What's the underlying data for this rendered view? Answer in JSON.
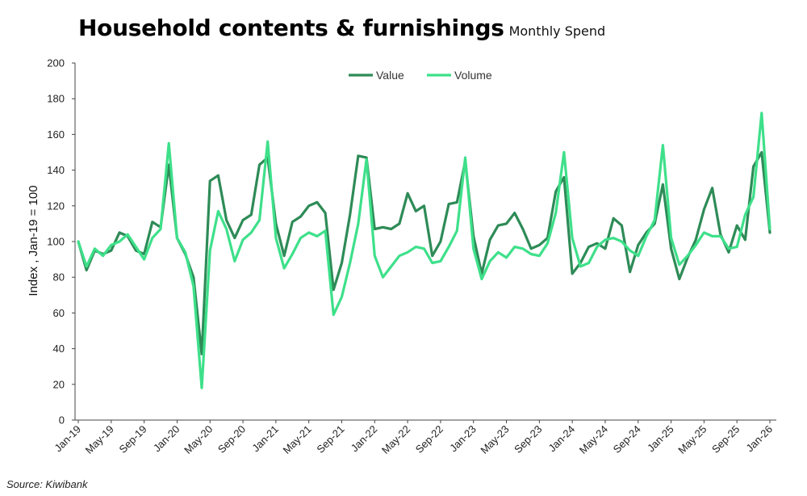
{
  "title": "Household contents & furnishings",
  "subtitle": "Monthly Spend",
  "source": "Source: Kiwibank",
  "chart_data": {
    "type": "line",
    "title": "Household contents & furnishings",
    "subtitle": "Monthly Spend",
    "xlabel": "",
    "ylabel": "Index , Jan-19 = 100",
    "ylim": [
      0,
      200
    ],
    "yticks": [
      0,
      20,
      40,
      60,
      80,
      100,
      120,
      140,
      160,
      180,
      200
    ],
    "grid": false,
    "legend_position": "top-center",
    "x_tick_labels": [
      "Jan-19",
      "May-19",
      "Sep-19",
      "Jan-20",
      "May-20",
      "Sep-20",
      "Jan-21",
      "May-21",
      "Sep-21",
      "Jan-22",
      "May-22",
      "Sep-22",
      "Jan-23",
      "May-23",
      "Sep-23",
      "Jan-24",
      "May-24",
      "Sep-24",
      "Jan-25",
      "May-25",
      "Sep-25",
      "Jan-26"
    ],
    "x_tick_step_months": 4,
    "series": [
      {
        "name": "Value",
        "color": "#2e8b57",
        "values": [
          100,
          84,
          95,
          93,
          95,
          105,
          103,
          95,
          93,
          111,
          108,
          143,
          102,
          93,
          80,
          37,
          134,
          137,
          112,
          102,
          112,
          115,
          143,
          147,
          110,
          92,
          111,
          114,
          120,
          122,
          116,
          73,
          88,
          115,
          148,
          147,
          107,
          108,
          107,
          110,
          127,
          117,
          120,
          92,
          100,
          121,
          122,
          145,
          103,
          82,
          101,
          109,
          110,
          116,
          107,
          96,
          98,
          102,
          128,
          136,
          82,
          88,
          97,
          99,
          96,
          113,
          109,
          83,
          98,
          105,
          110,
          132,
          96,
          79,
          91,
          101,
          118,
          130,
          104,
          94,
          109,
          101,
          142,
          150,
          105
        ]
      },
      {
        "name": "Volume",
        "color": "#3ee08a",
        "values": [
          100,
          86,
          96,
          92,
          98,
          100,
          104,
          97,
          90,
          102,
          107,
          155,
          102,
          94,
          75,
          18,
          95,
          117,
          107,
          89,
          101,
          105,
          112,
          156,
          102,
          85,
          93,
          102,
          105,
          103,
          106,
          59,
          69,
          88,
          110,
          146,
          92,
          80,
          86,
          92,
          94,
          97,
          96,
          88,
          89,
          97,
          106,
          147,
          96,
          79,
          89,
          94,
          91,
          97,
          96,
          93,
          92,
          99,
          116,
          150,
          102,
          86,
          88,
          97,
          101,
          102,
          100,
          95,
          92,
          103,
          112,
          154,
          102,
          87,
          92,
          98,
          105,
          103,
          103,
          96,
          97,
          115,
          125,
          172,
          107
        ]
      }
    ]
  }
}
